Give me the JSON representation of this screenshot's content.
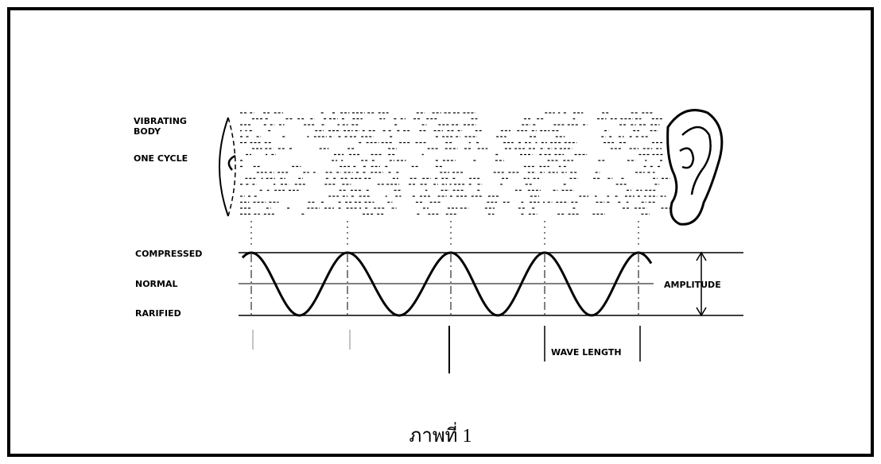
{
  "labels": {
    "vibrating_body": [
      "VIBRATING",
      "BODY"
    ],
    "one_cycle": "ONE CYCLE",
    "compressed": "COMPRESSED",
    "normal": "NORMAL",
    "rarified": "RARIFIED",
    "amplitude": "AMPLITUDE",
    "wave_length": "WAVE LENGTH"
  },
  "caption": "ภาพที่ 1"
}
